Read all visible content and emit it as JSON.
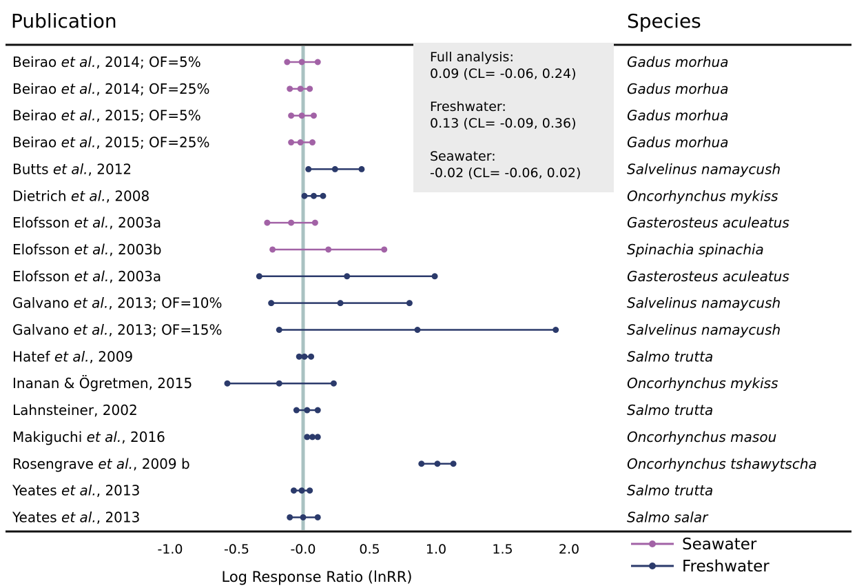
{
  "chart_data": {
    "type": "forest",
    "headers": {
      "publication": "Publication",
      "species": "Species"
    },
    "xlabel": "Log Response Ratio (lnRR)",
    "xlim": [
      -1.0,
      2.0
    ],
    "ticks": [
      {
        "value": -1.0,
        "label": "-1.0"
      },
      {
        "value": -0.5,
        "label": "-0.5"
      },
      {
        "value": 0.0,
        "label": "-0.0"
      },
      {
        "value": 0.5,
        "label": "0.5"
      },
      {
        "value": 1.0,
        "label": "1.0"
      },
      {
        "value": 1.5,
        "label": "1.5"
      },
      {
        "value": 2.0,
        "label": "2.0"
      }
    ],
    "reference_line": 0.0,
    "legend": [
      {
        "name": "Seawater",
        "color": "#a262a6"
      },
      {
        "name": "Freshwater",
        "color": "#2b3a6b"
      }
    ],
    "summary": [
      {
        "label": "Full analysis:",
        "value": "0.09 (CL= -0.06, 0.24)"
      },
      {
        "label": "Freshwater:",
        "value": "0.13 (CL= -0.09, 0.36)"
      },
      {
        "label": "Seawater:",
        "value": "-0.02 (CL= -0.06, 0.02)"
      }
    ],
    "rows": [
      {
        "pre": "Beirao ",
        "etal": "et al.",
        "post": ", 2014; OF=5%",
        "species": "Gadus morhua",
        "group": "Seawater",
        "est": -0.01,
        "lo": -0.12,
        "hi": 0.11
      },
      {
        "pre": "Beirao ",
        "etal": "et al.",
        "post": ", 2014; OF=25%",
        "species": "Gadus morhua",
        "group": "Seawater",
        "est": -0.02,
        "lo": -0.1,
        "hi": 0.05
      },
      {
        "pre": "Beirao ",
        "etal": "et al.",
        "post": ", 2015; OF=5%",
        "species": "Gadus morhua",
        "group": "Seawater",
        "est": -0.01,
        "lo": -0.09,
        "hi": 0.08
      },
      {
        "pre": "Beirao ",
        "etal": "et al.",
        "post": ", 2015; OF=25%",
        "species": "Gadus morhua",
        "group": "Seawater",
        "est": -0.02,
        "lo": -0.09,
        "hi": 0.07
      },
      {
        "pre": "Butts ",
        "etal": "et al.",
        "post": ", 2012",
        "species": "Salvelinus namaycush",
        "group": "Freshwater",
        "est": 0.24,
        "lo": 0.04,
        "hi": 0.44
      },
      {
        "pre": "Dietrich ",
        "etal": "et al.",
        "post": ", 2008",
        "species": "Oncorhynchus mykiss",
        "group": "Freshwater",
        "est": 0.08,
        "lo": 0.01,
        "hi": 0.15
      },
      {
        "pre": "Elofsson ",
        "etal": "et al.",
        "post": ", 2003a",
        "species": "Gasterosteus aculeatus",
        "group": "Seawater",
        "est": -0.09,
        "lo": -0.27,
        "hi": 0.09
      },
      {
        "pre": "Elofsson ",
        "etal": "et al.",
        "post": ", 2003b",
        "species": "Spinachia spinachia",
        "group": "Seawater",
        "est": 0.19,
        "lo": -0.23,
        "hi": 0.61
      },
      {
        "pre": "Elofsson ",
        "etal": "et al.",
        "post": ", 2003a",
        "species": "Gasterosteus aculeatus",
        "group": "Freshwater",
        "est": 0.33,
        "lo": -0.33,
        "hi": 0.99
      },
      {
        "pre": "Galvano ",
        "etal": "et al.",
        "post": ", 2013; OF=10%",
        "species": "Salvelinus namaycush",
        "group": "Freshwater",
        "est": 0.28,
        "lo": -0.24,
        "hi": 0.8
      },
      {
        "pre": "Galvano ",
        "etal": "et al.",
        "post": ", 2013; OF=15%",
        "species": "Salvelinus namaycush",
        "group": "Freshwater",
        "est": 0.86,
        "lo": -0.18,
        "hi": 1.9
      },
      {
        "pre": "Hatef ",
        "etal": "et al.",
        "post": ", 2009",
        "species": "Salmo trutta",
        "group": "Freshwater",
        "est": 0.01,
        "lo": -0.03,
        "hi": 0.06
      },
      {
        "pre": "Inanan & Ögretmen, 2015",
        "etal": "",
        "post": "",
        "species": "Oncorhynchus mykiss",
        "group": "Freshwater",
        "est": -0.18,
        "lo": -0.57,
        "hi": 0.23
      },
      {
        "pre": "Lahnsteiner, 2002",
        "etal": "",
        "post": "",
        "species": "Salmo trutta",
        "group": "Freshwater",
        "est": 0.03,
        "lo": -0.05,
        "hi": 0.11
      },
      {
        "pre": "Makiguchi ",
        "etal": "et al.",
        "post": ", 2016",
        "species": "Oncorhynchus masou",
        "group": "Freshwater",
        "est": 0.07,
        "lo": 0.03,
        "hi": 0.11
      },
      {
        "pre": "Rosengrave ",
        "etal": "et al.",
        "post": ", 2009 b",
        "species": "Oncorhynchus tshawytscha",
        "group": "Freshwater",
        "est": 1.01,
        "lo": 0.89,
        "hi": 1.13
      },
      {
        "pre": "Yeates ",
        "etal": "et al.",
        "post": ", 2013",
        "species": "Salmo trutta",
        "group": "Freshwater",
        "est": -0.01,
        "lo": -0.07,
        "hi": 0.05
      },
      {
        "pre": "Yeates ",
        "etal": "et al.",
        "post": ", 2013",
        "species": "Salmo salar",
        "group": "Freshwater",
        "est": 0.0,
        "lo": -0.1,
        "hi": 0.11
      }
    ]
  }
}
